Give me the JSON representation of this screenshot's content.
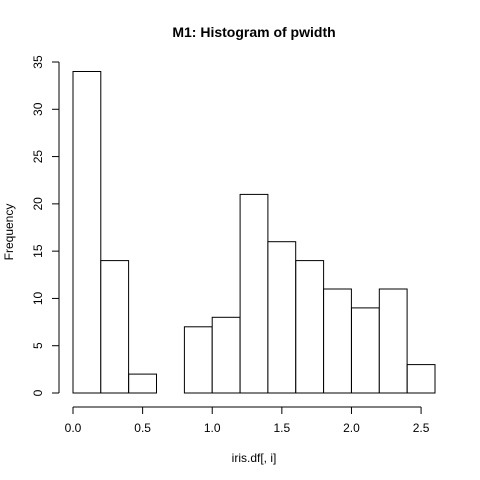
{
  "chart_data": {
    "type": "bar",
    "title": "M1: Histogram of pwidth",
    "xlabel": "iris.df[, i]",
    "ylabel": "Frequency",
    "bins": [
      {
        "x0": 0.0,
        "x1": 0.2,
        "count": 34
      },
      {
        "x0": 0.2,
        "x1": 0.4,
        "count": 14
      },
      {
        "x0": 0.4,
        "x1": 0.6,
        "count": 2
      },
      {
        "x0": 0.6,
        "x1": 0.8,
        "count": 0
      },
      {
        "x0": 0.8,
        "x1": 1.0,
        "count": 7
      },
      {
        "x0": 1.0,
        "x1": 1.2,
        "count": 8
      },
      {
        "x0": 1.2,
        "x1": 1.4,
        "count": 21
      },
      {
        "x0": 1.4,
        "x1": 1.6,
        "count": 16
      },
      {
        "x0": 1.6,
        "x1": 1.8,
        "count": 14
      },
      {
        "x0": 1.8,
        "x1": 2.0,
        "count": 11
      },
      {
        "x0": 2.0,
        "x1": 2.2,
        "count": 9
      },
      {
        "x0": 2.2,
        "x1": 2.4,
        "count": 11
      },
      {
        "x0": 2.4,
        "x1": 2.6,
        "count": 3
      }
    ],
    "xlim": [
      0.0,
      2.6
    ],
    "ylim": [
      0,
      35
    ],
    "xticks": [
      {
        "value": 0.0,
        "label": "0.0"
      },
      {
        "value": 0.5,
        "label": "0.5"
      },
      {
        "value": 1.0,
        "label": "1.0"
      },
      {
        "value": 1.5,
        "label": "1.5"
      },
      {
        "value": 2.0,
        "label": "2.0"
      },
      {
        "value": 2.5,
        "label": "2.5"
      }
    ],
    "yticks": [
      {
        "value": 0,
        "label": "0"
      },
      {
        "value": 5,
        "label": "5"
      },
      {
        "value": 10,
        "label": "10"
      },
      {
        "value": 15,
        "label": "15"
      },
      {
        "value": 20,
        "label": "20"
      },
      {
        "value": 25,
        "label": "25"
      },
      {
        "value": 30,
        "label": "30"
      },
      {
        "value": 35,
        "label": "35"
      }
    ],
    "grid": false,
    "legend": "none",
    "colors": {
      "bar_fill": "#ffffff",
      "bar_stroke": "#000000",
      "background": "#ffffff"
    }
  }
}
